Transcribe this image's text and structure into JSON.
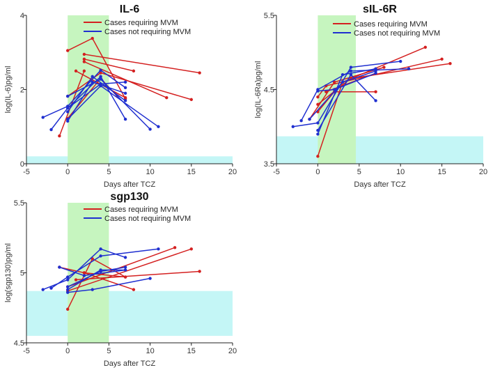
{
  "colors": {
    "mvm": "#d42020",
    "nomvm": "#1f2fd0",
    "tcz_band": "#c6f5bf",
    "ref_band": "#c4f6f6"
  },
  "chart_data": [
    {
      "type": "line",
      "title": "IL-6",
      "xlabel": "Days after TCZ",
      "ylabel": "log(IL-6)pg/ml",
      "xlim": [
        -5,
        20
      ],
      "ylim": [
        0,
        4
      ],
      "xticks": [
        -5,
        0,
        5,
        10,
        15,
        20
      ],
      "xtick_labels": [
        "-5",
        "0",
        "5",
        "10",
        "15",
        "20"
      ],
      "yticks": [
        0,
        2,
        4
      ],
      "ytick_labels": [
        "0",
        "2",
        "4"
      ],
      "tcz_band": [
        0,
        5
      ],
      "ref_band": [
        0,
        0.2
      ],
      "legend": {
        "position": "top-right",
        "labels": [
          "Cases requiring MVM",
          "Cases not requiring MVM"
        ]
      },
      "series": [
        {
          "group": "mvm",
          "points": [
            [
              0,
              3.05
            ],
            [
              3,
              3.38
            ],
            [
              7,
              1.75
            ]
          ]
        },
        {
          "group": "mvm",
          "points": [
            [
              2,
              2.95
            ],
            [
              16,
              2.45
            ]
          ]
        },
        {
          "group": "mvm",
          "points": [
            [
              2,
              2.82
            ],
            [
              8,
              2.5
            ]
          ]
        },
        {
          "group": "mvm",
          "points": [
            [
              2,
              2.75
            ],
            [
              12,
              1.78
            ]
          ]
        },
        {
          "group": "mvm",
          "points": [
            [
              1,
              2.5
            ],
            [
              7,
              1.78
            ]
          ]
        },
        {
          "group": "mvm",
          "points": [
            [
              0,
              1.82
            ],
            [
              4,
              2.45
            ],
            [
              15,
              1.73
            ]
          ]
        },
        {
          "group": "mvm",
          "points": [
            [
              -1,
              0.75
            ],
            [
              2,
              2.5
            ]
          ]
        },
        {
          "group": "mvm",
          "points": [
            [
              0,
              1.22
            ],
            [
              4,
              2.3
            ],
            [
              6,
              1.82
            ]
          ]
        },
        {
          "group": "nomvm",
          "points": [
            [
              -3,
              1.25
            ],
            [
              0,
              1.55
            ],
            [
              4,
              2.52
            ],
            [
              7,
              2.05
            ]
          ]
        },
        {
          "group": "nomvm",
          "points": [
            [
              -2,
              0.92
            ],
            [
              0,
              1.5
            ],
            [
              4,
              2.35
            ],
            [
              7,
              1.2
            ]
          ]
        },
        {
          "group": "nomvm",
          "points": [
            [
              0,
              1.5
            ],
            [
              4,
              2.15
            ],
            [
              7,
              2.2
            ]
          ]
        },
        {
          "group": "nomvm",
          "points": [
            [
              0,
              1.82
            ],
            [
              4,
              2.28
            ],
            [
              10,
              0.93
            ]
          ]
        },
        {
          "group": "nomvm",
          "points": [
            [
              0,
              1.2
            ],
            [
              4,
              2.1
            ],
            [
              11,
              1.0
            ]
          ]
        },
        {
          "group": "nomvm",
          "points": [
            [
              0,
              1.15
            ],
            [
              3,
              2.2
            ],
            [
              7,
              1.9
            ]
          ]
        },
        {
          "group": "nomvm",
          "points": [
            [
              0,
              1.4
            ],
            [
              3,
              2.35
            ],
            [
              7,
              1.7
            ]
          ]
        }
      ]
    },
    {
      "type": "line",
      "title": "sIL-6R",
      "xlabel": "Days after TCZ",
      "ylabel": "log(IL-6Ra)pg/ml",
      "xlim": [
        -5,
        20
      ],
      "ylim": [
        3.5,
        5.5
      ],
      "xticks": [
        -5,
        0,
        5,
        10,
        15,
        20
      ],
      "xtick_labels": [
        "-5",
        "0",
        "5",
        "10",
        "15",
        "20"
      ],
      "yticks": [
        3.5,
        4.5,
        5.5
      ],
      "ytick_labels": [
        "3.5",
        "4.5",
        "5.5"
      ],
      "tcz_band": [
        0,
        4.6
      ],
      "ref_band": [
        3.5,
        3.87
      ],
      "legend": {
        "position": "top-right",
        "labels": [
          "Cases requiring MVM",
          "Cases not requiring MVM"
        ]
      },
      "series": [
        {
          "group": "mvm",
          "points": [
            [
              0,
              3.6
            ],
            [
              3,
              4.6
            ],
            [
              13,
              5.07
            ]
          ]
        },
        {
          "group": "mvm",
          "points": [
            [
              0,
              4.4
            ],
            [
              1,
              4.55
            ],
            [
              15,
              4.91
            ]
          ]
        },
        {
          "group": "mvm",
          "points": [
            [
              0,
              4.3
            ],
            [
              4,
              4.65
            ],
            [
              16,
              4.85
            ]
          ]
        },
        {
          "group": "mvm",
          "points": [
            [
              -1,
              4.1
            ],
            [
              2,
              4.6
            ],
            [
              8,
              4.8
            ]
          ]
        },
        {
          "group": "mvm",
          "points": [
            [
              0,
              4.2
            ],
            [
              2,
              4.47
            ],
            [
              7,
              4.47
            ]
          ]
        },
        {
          "group": "mvm",
          "points": [
            [
              1,
              4.47
            ],
            [
              7,
              4.72
            ]
          ]
        },
        {
          "group": "nomvm",
          "points": [
            [
              -3,
              4.0
            ],
            [
              0,
              4.05
            ],
            [
              4,
              4.8
            ],
            [
              10,
              4.88
            ]
          ]
        },
        {
          "group": "nomvm",
          "points": [
            [
              -2,
              4.08
            ],
            [
              0,
              4.5
            ],
            [
              4,
              4.75
            ],
            [
              11,
              4.78
            ]
          ]
        },
        {
          "group": "nomvm",
          "points": [
            [
              0,
              3.9
            ],
            [
              3,
              4.7
            ],
            [
              7,
              4.78
            ]
          ]
        },
        {
          "group": "nomvm",
          "points": [
            [
              0,
              3.95
            ],
            [
              4,
              4.7
            ],
            [
              7,
              4.35
            ]
          ]
        },
        {
          "group": "nomvm",
          "points": [
            [
              0,
              4.48
            ],
            [
              2,
              4.5
            ],
            [
              7,
              4.72
            ]
          ]
        },
        {
          "group": "nomvm",
          "points": [
            [
              -1,
              4.1
            ],
            [
              3,
              4.6
            ],
            [
              7,
              4.75
            ]
          ]
        }
      ]
    },
    {
      "type": "line",
      "title": "sgp130",
      "xlabel": "Days after TCZ",
      "ylabel": "log(sgp130)pg/ml",
      "xlim": [
        -5,
        20
      ],
      "ylim": [
        4.5,
        5.5
      ],
      "xticks": [
        -5,
        0,
        5,
        10,
        15,
        20
      ],
      "xtick_labels": [
        "-5",
        "0",
        "5",
        "10",
        "15",
        "20"
      ],
      "yticks": [
        4.5,
        5,
        5.5
      ],
      "ytick_labels": [
        "4.5",
        "5",
        "5.5"
      ],
      "tcz_band": [
        0,
        5
      ],
      "ref_band": [
        4.55,
        4.87
      ],
      "legend": {
        "position": "top-right",
        "labels": [
          "Cases requiring MVM",
          "Cases not requiring MVM"
        ]
      },
      "series": [
        {
          "group": "mvm",
          "points": [
            [
              0,
              4.74
            ],
            [
              3,
              5.1
            ],
            [
              7,
              4.97
            ]
          ]
        },
        {
          "group": "mvm",
          "points": [
            [
              0,
              4.9
            ],
            [
              13,
              5.18
            ]
          ]
        },
        {
          "group": "mvm",
          "points": [
            [
              0,
              4.87
            ],
            [
              15,
              5.17
            ]
          ]
        },
        {
          "group": "mvm",
          "points": [
            [
              1,
              4.95
            ],
            [
              16,
              5.01
            ]
          ]
        },
        {
          "group": "mvm",
          "points": [
            [
              -1,
              5.04
            ],
            [
              2,
              5.0
            ],
            [
              8,
              4.88
            ]
          ]
        },
        {
          "group": "mvm",
          "points": [
            [
              2,
              5.0
            ],
            [
              7,
              4.97
            ]
          ]
        },
        {
          "group": "nomvm",
          "points": [
            [
              -3,
              4.88
            ],
            [
              0,
              4.95
            ],
            [
              4,
              5.17
            ],
            [
              7,
              5.11
            ]
          ]
        },
        {
          "group": "nomvm",
          "points": [
            [
              -2,
              4.89
            ],
            [
              0,
              4.97
            ],
            [
              4,
              5.12
            ],
            [
              11,
              5.17
            ]
          ]
        },
        {
          "group": "nomvm",
          "points": [
            [
              0,
              4.86
            ],
            [
              3,
              4.88
            ],
            [
              10,
              4.96
            ]
          ]
        },
        {
          "group": "nomvm",
          "points": [
            [
              0,
              4.9
            ],
            [
              4,
              5.01
            ],
            [
              7,
              5.04
            ]
          ]
        },
        {
          "group": "nomvm",
          "points": [
            [
              0,
              4.88
            ],
            [
              4,
              5.02
            ],
            [
              7,
              5.02
            ]
          ]
        },
        {
          "group": "nomvm",
          "points": [
            [
              -1,
              5.04
            ],
            [
              2,
              4.98
            ],
            [
              7,
              5.02
            ]
          ]
        }
      ]
    }
  ]
}
